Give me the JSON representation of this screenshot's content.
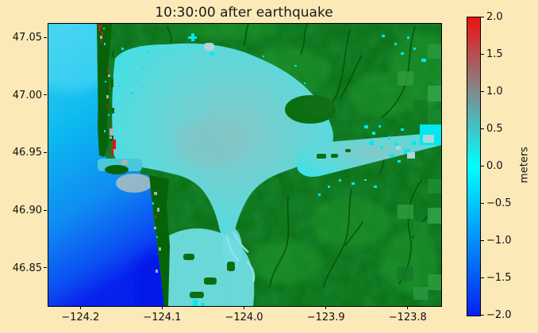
{
  "figure": {
    "title": "10:30:00 after earthquake",
    "background_color": "#fce9b8"
  },
  "axes": {
    "x_tick_labels": [
      "−124.2",
      "−124.1",
      "−124.0",
      "−123.9",
      "−123.8"
    ],
    "x_tick_values": [
      -124.2,
      -124.1,
      -124.0,
      -123.9,
      -123.8
    ],
    "y_tick_labels": [
      "47.05",
      "47.00",
      "46.95",
      "46.90",
      "46.85"
    ],
    "y_tick_values": [
      47.05,
      47.0,
      46.95,
      46.9,
      46.85
    ],
    "xlim": [
      -124.24,
      -123.76
    ],
    "ylim": [
      46.8175,
      47.0625
    ]
  },
  "colorbar": {
    "label": "meters",
    "tick_labels": [
      "2.0",
      "1.5",
      "1.0",
      "0.5",
      "0.0",
      "−0.5",
      "−1.0",
      "−1.5",
      "−2.0"
    ],
    "tick_values": [
      2.0,
      1.5,
      1.0,
      0.5,
      0.0,
      -0.5,
      -1.0,
      -1.5,
      -2.0
    ],
    "vmin": -2.0,
    "vmax": 2.0,
    "colormap_stops": [
      {
        "value": -2.0,
        "color": "#0720f2"
      },
      {
        "value": 0.0,
        "color": "#00ffff"
      },
      {
        "value": 1.0,
        "color": "#7f8c8e"
      },
      {
        "value": 2.0,
        "color": "#ee1111"
      }
    ]
  },
  "chart_data": {
    "type": "heatmap",
    "title": "10:30:00 after earthquake",
    "xlabel": "",
    "ylabel": "",
    "colorbar_label": "meters",
    "xlim": [
      -124.24,
      -123.76
    ],
    "ylim": [
      46.8175,
      47.0625
    ],
    "clim": [
      -2.0,
      2.0
    ],
    "x_ticks": [
      -124.2,
      -124.1,
      -124.0,
      -123.9,
      -123.8
    ],
    "y_ticks": [
      47.05,
      47.0,
      46.95,
      46.9,
      46.85
    ],
    "colorbar_ticks": [
      2.0,
      1.5,
      1.0,
      0.5,
      0.0,
      -0.5,
      -1.0,
      -1.5,
      -2.0
    ],
    "legend": "none",
    "grid": false,
    "regions": [
      {
        "name": "offshore-ocean",
        "approx_extent_lon": [
          -124.24,
          -124.13
        ],
        "approx_value_m": "0 to -1.8 (drawdown, darkest blue at coast near -124.05 lat 46.83)",
        "color": "cyan-to-blue gradient"
      },
      {
        "name": "bay-water-grays-harbor",
        "approx_extent_lon": [
          -124.12,
          -123.9
        ],
        "approx_value_m": "+0.1 to +0.5",
        "color": "pale turquoise / gray-teal center"
      },
      {
        "name": "north-spit-high-water",
        "approx_extent_lon": [
          -124.18,
          -124.15
        ],
        "approx_value_m": "+1.5 to +2.0",
        "color": "red speckles along spit, lat 46.95-47.05"
      },
      {
        "name": "flooded-patches-east-estuary",
        "approx_extent_lon": [
          -123.88,
          -123.76
        ],
        "approx_value_m": "~0 to +0.5",
        "color": "cyan blocks near lat 46.95-46.97"
      },
      {
        "name": "south-bay-channels",
        "approx_extent_lon": [
          -124.08,
          -123.97
        ],
        "approx_value_m": "~+0.2",
        "color": "pale cyan, lat 46.85-46.89"
      },
      {
        "name": "land-topography",
        "approx_value_m": "above sea level (not on meters scale)",
        "color": "green elevation shading with dark drainage valleys, coarse blocky cells at east edge"
      }
    ]
  }
}
